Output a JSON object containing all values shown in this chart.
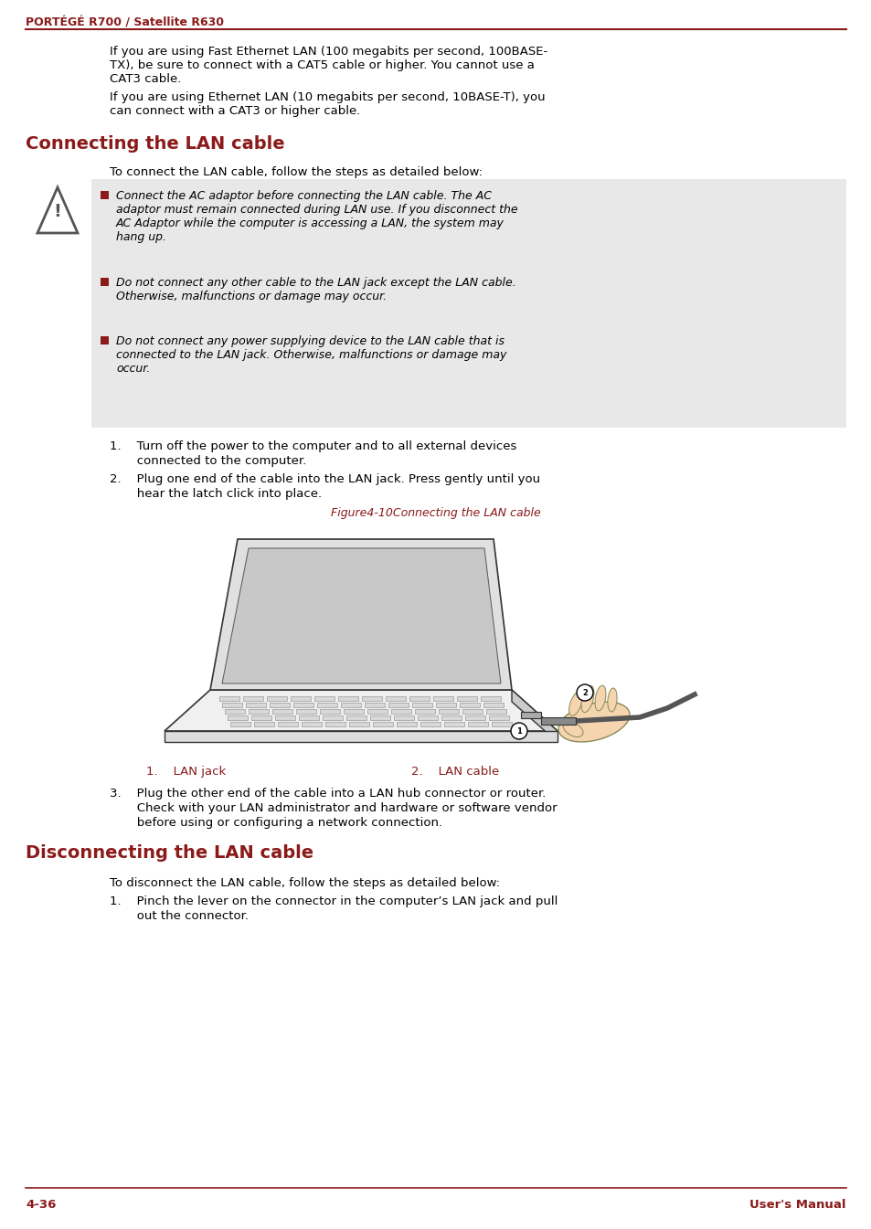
{
  "bg_color": "#ffffff",
  "dark_red": "#8B1A1A",
  "black": "#000000",
  "gray_bg": "#E8E8E8",
  "header_text": "PORTÉGÉ R700 / Satellite R630",
  "footer_left": "4-36",
  "footer_right": "User's Manual",
  "para1_line1": "If you are using Fast Ethernet LAN (100 megabits per second, 100BASE-",
  "para1_line2": "TX), be sure to connect with a CAT5 cable or higher. You cannot use a",
  "para1_line3": "CAT3 cable.",
  "para2_line1": "If you are using Ethernet LAN (10 megabits per second, 10BASE-T), you",
  "para2_line2": "can connect with a CAT3 or higher cable.",
  "section1_title": "Connecting the LAN cable",
  "section1_intro": "To connect the LAN cable, follow the steps as detailed below:",
  "warn1_line1": "Connect the AC adaptor before connecting the LAN cable. The AC",
  "warn1_line2": "adaptor must remain connected during LAN use. If you disconnect the",
  "warn1_line3": "AC Adaptor while the computer is accessing a LAN, the system may",
  "warn1_line4": "hang up.",
  "warn2_line1": "Do not connect any other cable to the LAN jack except the LAN cable.",
  "warn2_line2": "Otherwise, malfunctions or damage may occur.",
  "warn3_line1": "Do not connect any power supplying device to the LAN cable that is",
  "warn3_line2": "connected to the LAN jack. Otherwise, malfunctions or damage may",
  "warn3_line3": "occur.",
  "step1_line1": "1.    Turn off the power to the computer and to all external devices",
  "step1_line2": "       connected to the computer.",
  "step2_line1": "2.    Plug one end of the cable into the LAN jack. Press gently until you",
  "step2_line2": "       hear the latch click into place.",
  "fig_caption": "Figure4-10Connecting the LAN cable",
  "legend1": "1.    LAN jack",
  "legend2": "2.    LAN cable",
  "step3_line1": "3.    Plug the other end of the cable into a LAN hub connector or router.",
  "step3_line2": "       Check with your LAN administrator and hardware or software vendor",
  "step3_line3": "       before using or configuring a network connection.",
  "section2_title": "Disconnecting the LAN cable",
  "section2_intro": "To disconnect the LAN cable, follow the steps as detailed below:",
  "disc_step1_line1": "1.    Pinch the lever on the connector in the computer’s LAN jack and pull",
  "disc_step1_line2": "       out the connector."
}
